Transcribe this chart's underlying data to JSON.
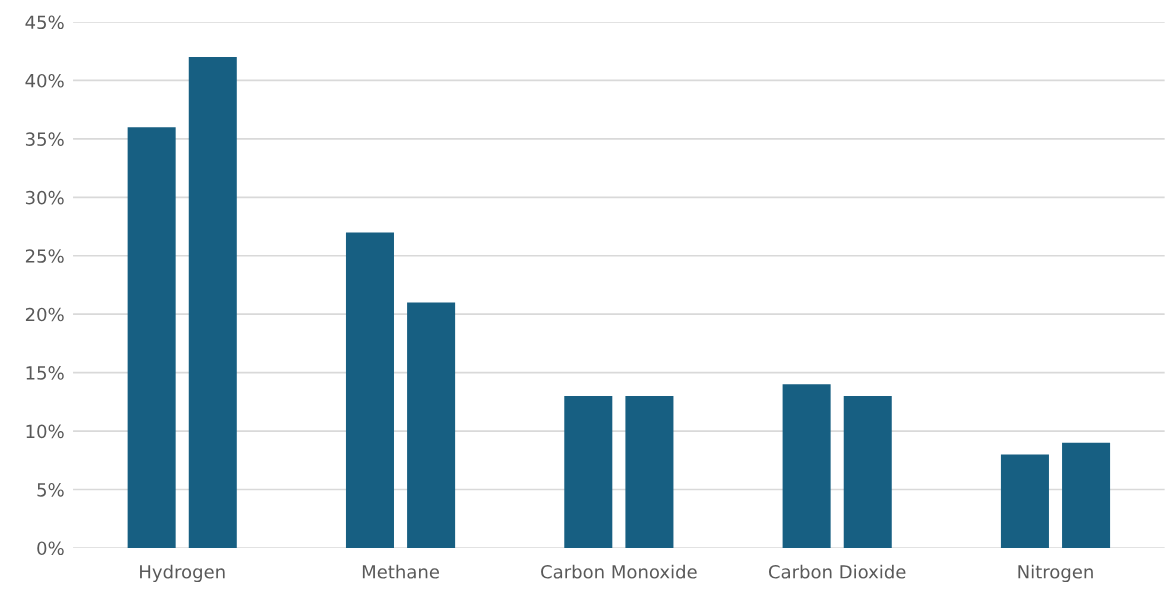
{
  "chart_data": {
    "type": "bar",
    "categories": [
      "Hydrogen",
      "Methane",
      "Carbon Monoxide",
      "Carbon Dioxide",
      "Nitrogen"
    ],
    "series": [
      {
        "color": "#175f82",
        "values": [
          36,
          27,
          13,
          14,
          8
        ]
      },
      {
        "color": "#175f82",
        "values": [
          42,
          21,
          13,
          13,
          9
        ]
      }
    ],
    "ylim": [
      0,
      45
    ],
    "yticks": [
      {
        "value": 0,
        "label": "0%"
      },
      {
        "value": 5,
        "label": "5%"
      },
      {
        "value": 10,
        "label": "10%"
      },
      {
        "value": 15,
        "label": "15%"
      },
      {
        "value": 20,
        "label": "20%"
      },
      {
        "value": 25,
        "label": "25%"
      },
      {
        "value": 30,
        "label": "30%"
      },
      {
        "value": 35,
        "label": "35%"
      },
      {
        "value": 40,
        "label": "40%"
      },
      {
        "value": 45,
        "label": "45%"
      }
    ],
    "grid": "y"
  }
}
